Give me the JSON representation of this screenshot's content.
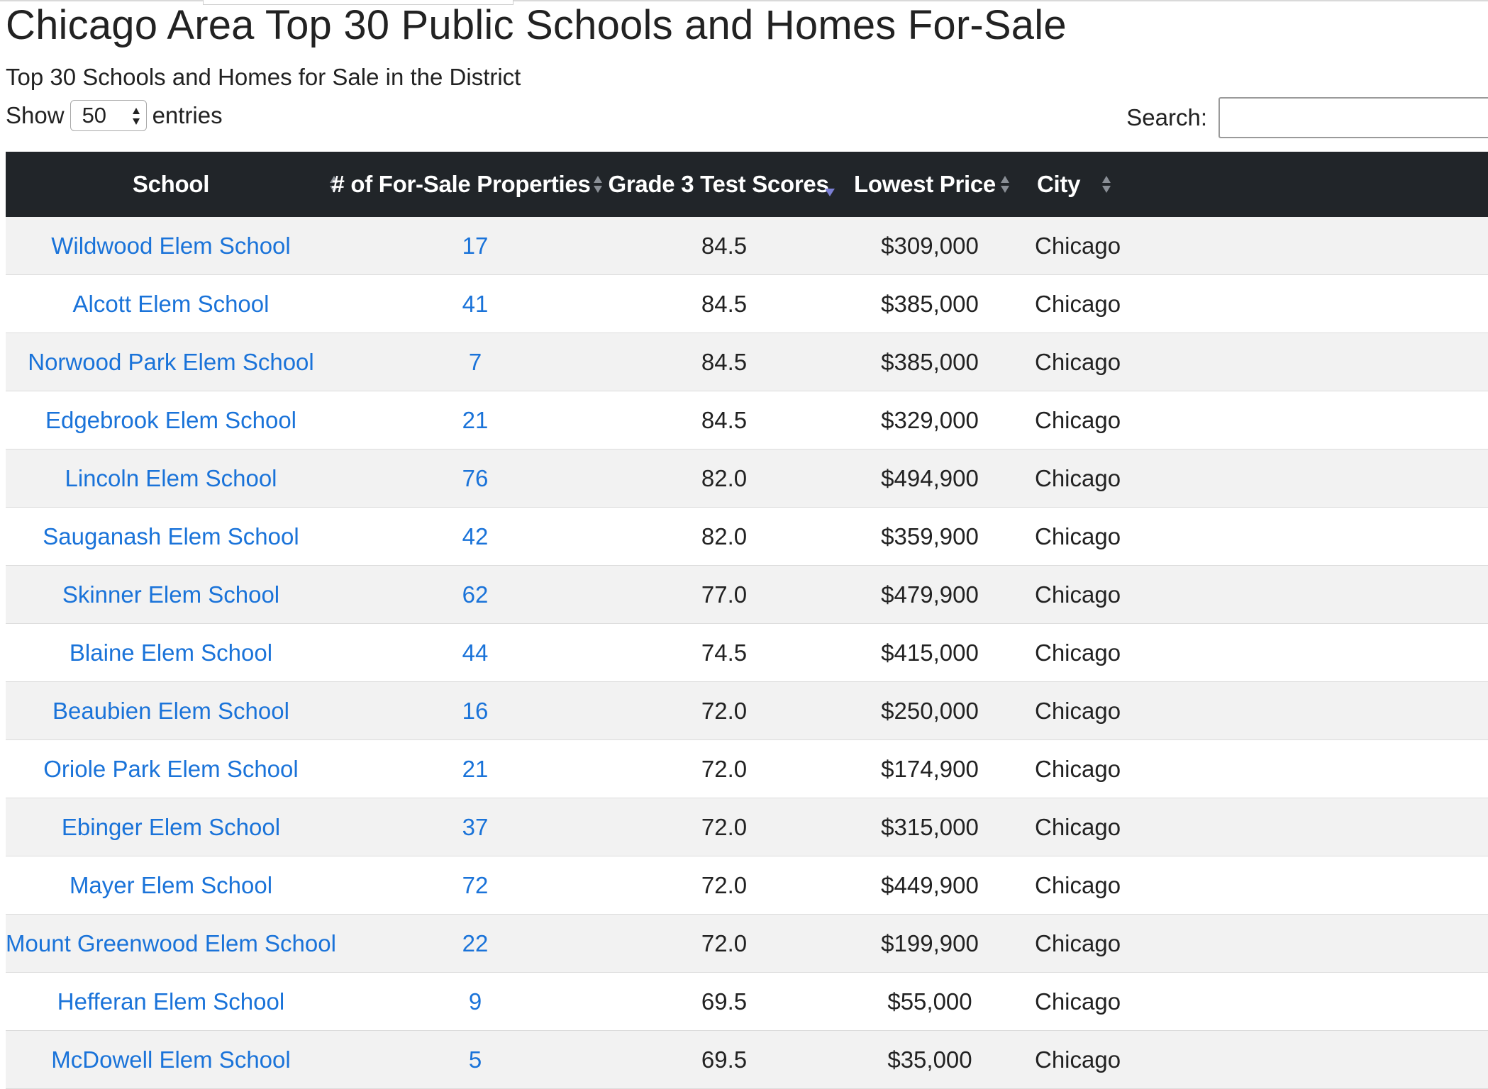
{
  "page": {
    "title": "Chicago Area Top 30 Public Schools and Homes For-Sale",
    "subtitle": "Top 30 Schools and Homes for Sale in the District"
  },
  "length_control": {
    "prefix": "Show",
    "value": "50",
    "suffix": "entries"
  },
  "search": {
    "label": "Search:",
    "value": "",
    "placeholder": ""
  },
  "colors": {
    "header_bg": "#212529",
    "link": "#1a73d9",
    "row_stripe": "#f2f2f2",
    "sort_active": "#7b7fd4"
  },
  "table": {
    "columns": [
      {
        "label": "School",
        "sort": "none"
      },
      {
        "label": "# of For-Sale Properties",
        "sort": "none"
      },
      {
        "label": "Grade 3 Test Scores",
        "sort": "descending"
      },
      {
        "label": "Lowest Price",
        "sort": "none"
      },
      {
        "label": "City",
        "sort": "none"
      }
    ],
    "rows": [
      {
        "school": "Wildwood Elem School",
        "properties": "17",
        "score": "84.5",
        "price": "$309,000",
        "city": "Chicago"
      },
      {
        "school": "Alcott Elem School",
        "properties": "41",
        "score": "84.5",
        "price": "$385,000",
        "city": "Chicago"
      },
      {
        "school": "Norwood Park Elem School",
        "properties": "7",
        "score": "84.5",
        "price": "$385,000",
        "city": "Chicago"
      },
      {
        "school": "Edgebrook Elem School",
        "properties": "21",
        "score": "84.5",
        "price": "$329,000",
        "city": "Chicago"
      },
      {
        "school": "Lincoln Elem School",
        "properties": "76",
        "score": "82.0",
        "price": "$494,900",
        "city": "Chicago"
      },
      {
        "school": "Sauganash Elem School",
        "properties": "42",
        "score": "82.0",
        "price": "$359,900",
        "city": "Chicago"
      },
      {
        "school": "Skinner Elem School",
        "properties": "62",
        "score": "77.0",
        "price": "$479,900",
        "city": "Chicago"
      },
      {
        "school": "Blaine Elem School",
        "properties": "44",
        "score": "74.5",
        "price": "$415,000",
        "city": "Chicago"
      },
      {
        "school": "Beaubien Elem School",
        "properties": "16",
        "score": "72.0",
        "price": "$250,000",
        "city": "Chicago"
      },
      {
        "school": "Oriole Park Elem School",
        "properties": "21",
        "score": "72.0",
        "price": "$174,900",
        "city": "Chicago"
      },
      {
        "school": "Ebinger Elem School",
        "properties": "37",
        "score": "72.0",
        "price": "$315,000",
        "city": "Chicago"
      },
      {
        "school": "Mayer Elem School",
        "properties": "72",
        "score": "72.0",
        "price": "$449,900",
        "city": "Chicago"
      },
      {
        "school": "Mount Greenwood Elem School",
        "properties": "22",
        "score": "72.0",
        "price": "$199,900",
        "city": "Chicago"
      },
      {
        "school": "Hefferan Elem School",
        "properties": "9",
        "score": "69.5",
        "price": "$55,000",
        "city": "Chicago"
      },
      {
        "school": "McDowell Elem School",
        "properties": "5",
        "score": "69.5",
        "price": "$35,000",
        "city": "Chicago"
      }
    ]
  }
}
